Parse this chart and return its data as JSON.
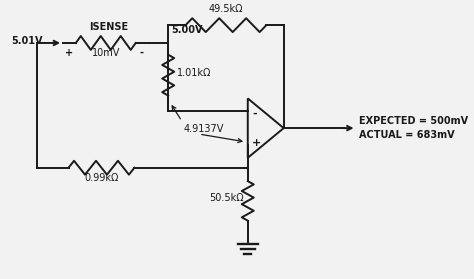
{
  "background_color": "#f2f2f2",
  "line_color": "#1a1a1a",
  "text_color": "#1a1a1a",
  "labels": {
    "voltage_in": "5.01V",
    "isense": "ISENSE",
    "voltage_mid": "5.00V",
    "drop": "10mV",
    "r1": "1.01kΩ",
    "r2": "0.99kΩ",
    "r3": "49.5kΩ",
    "r4": "50.5kΩ",
    "node_v": "4.9137V",
    "expected": "EXPECTED = 500mV",
    "actual": "ACTUAL = 683mV",
    "plus": "+",
    "minus": "-"
  },
  "figsize": [
    4.74,
    2.79
  ],
  "dpi": 100
}
